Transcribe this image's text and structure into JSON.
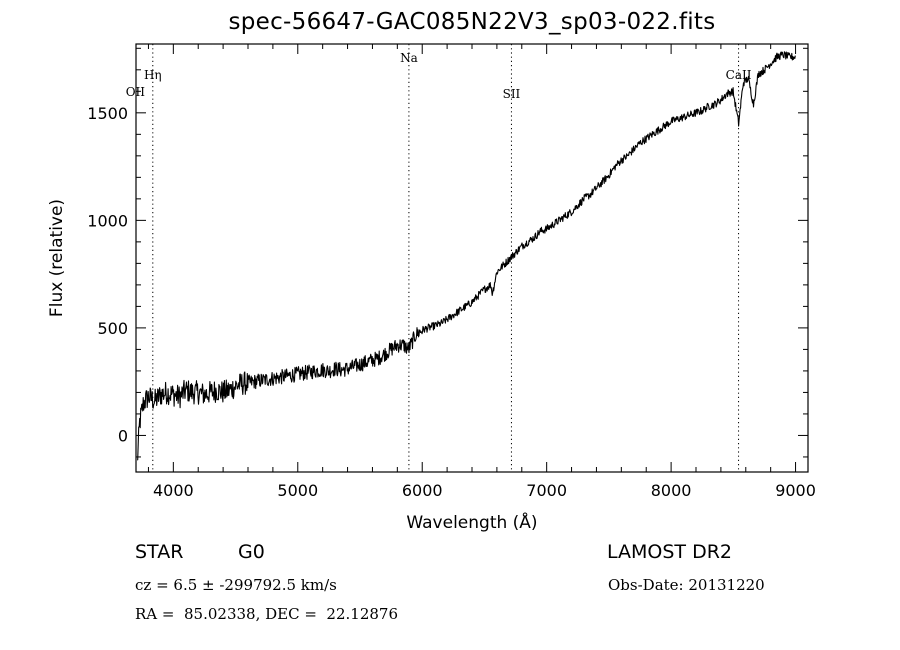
{
  "chart_data": {
    "type": "line",
    "title": "spec-56647-GAC085N22V3_sp03-022.fits",
    "xlabel": "Wavelength (Å)",
    "ylabel": "Flux (relative)",
    "xlim": [
      3700,
      9100
    ],
    "ylim": [
      -170,
      1820
    ],
    "xticks": [
      4000,
      5000,
      6000,
      7000,
      8000,
      9000
    ],
    "yticks": [
      0,
      500,
      1000,
      1500
    ],
    "grid": false,
    "series": [
      {
        "x": [
          3710,
          3730,
          3760,
          3800,
          3850,
          3900,
          3950,
          4000,
          4050,
          4100,
          4150,
          4200,
          4250,
          4300,
          4350,
          4400,
          4450,
          4500,
          4550,
          4600,
          4650,
          4700,
          4750,
          4800,
          4850,
          4900,
          4950,
          5000,
          5050,
          5100,
          5150,
          5200,
          5250,
          5300,
          5350,
          5400,
          5450,
          5500,
          5550,
          5600,
          5650,
          5700,
          5750,
          5800,
          5850,
          5890,
          5950,
          6000,
          6050,
          6100,
          6150,
          6200,
          6250,
          6300,
          6350,
          6400,
          6450,
          6500,
          6550,
          6563,
          6600,
          6650,
          6700,
          6750,
          6800,
          6850,
          6900,
          6950,
          7000,
          7050,
          7100,
          7150,
          7200,
          7250,
          7300,
          7350,
          7400,
          7450,
          7500,
          7550,
          7600,
          7650,
          7700,
          7750,
          7800,
          7850,
          7900,
          7950,
          8000,
          8050,
          8100,
          8150,
          8200,
          8250,
          8300,
          8350,
          8400,
          8450,
          8498,
          8542,
          8580,
          8620,
          8662,
          8700,
          8750,
          8800,
          8850,
          8900,
          8950,
          9000
        ],
        "y": [
          -130,
          60,
          150,
          180,
          160,
          190,
          200,
          190,
          180,
          210,
          200,
          200,
          190,
          200,
          210,
          200,
          210,
          230,
          240,
          245,
          250,
          255,
          260,
          265,
          270,
          275,
          280,
          285,
          290,
          295,
          300,
          305,
          300,
          310,
          305,
          310,
          320,
          330,
          340,
          350,
          360,
          380,
          400,
          420,
          420,
          400,
          470,
          490,
          500,
          510,
          520,
          540,
          560,
          580,
          600,
          620,
          650,
          680,
          700,
          660,
          760,
          790,
          820,
          850,
          880,
          900,
          920,
          950,
          960,
          980,
          1000,
          1020,
          1040,
          1070,
          1100,
          1120,
          1150,
          1180,
          1210,
          1250,
          1280,
          1300,
          1330,
          1360,
          1380,
          1400,
          1420,
          1440,
          1460,
          1470,
          1480,
          1490,
          1500,
          1510,
          1530,
          1540,
          1560,
          1590,
          1600,
          1450,
          1640,
          1660,
          1540,
          1680,
          1700,
          1730,
          1760,
          1770,
          1760,
          1760
        ]
      }
    ],
    "annotations": [
      {
        "label": "Hη",
        "x": 3835
      },
      {
        "label": "OII",
        "x": 3727
      },
      {
        "label": "Na",
        "x": 5893
      },
      {
        "label": "SII",
        "x": 6717
      },
      {
        "label": "CaII",
        "x": 8542
      }
    ]
  },
  "footer": {
    "object_class": "STAR",
    "subclass": "G0",
    "survey": "LAMOST DR2",
    "redshift": "cz = 6.5 ± -299792.5 km/s",
    "obs_date": "Obs-Date: 20131220",
    "coords": "RA =  85.02338, DEC =  22.12876"
  }
}
